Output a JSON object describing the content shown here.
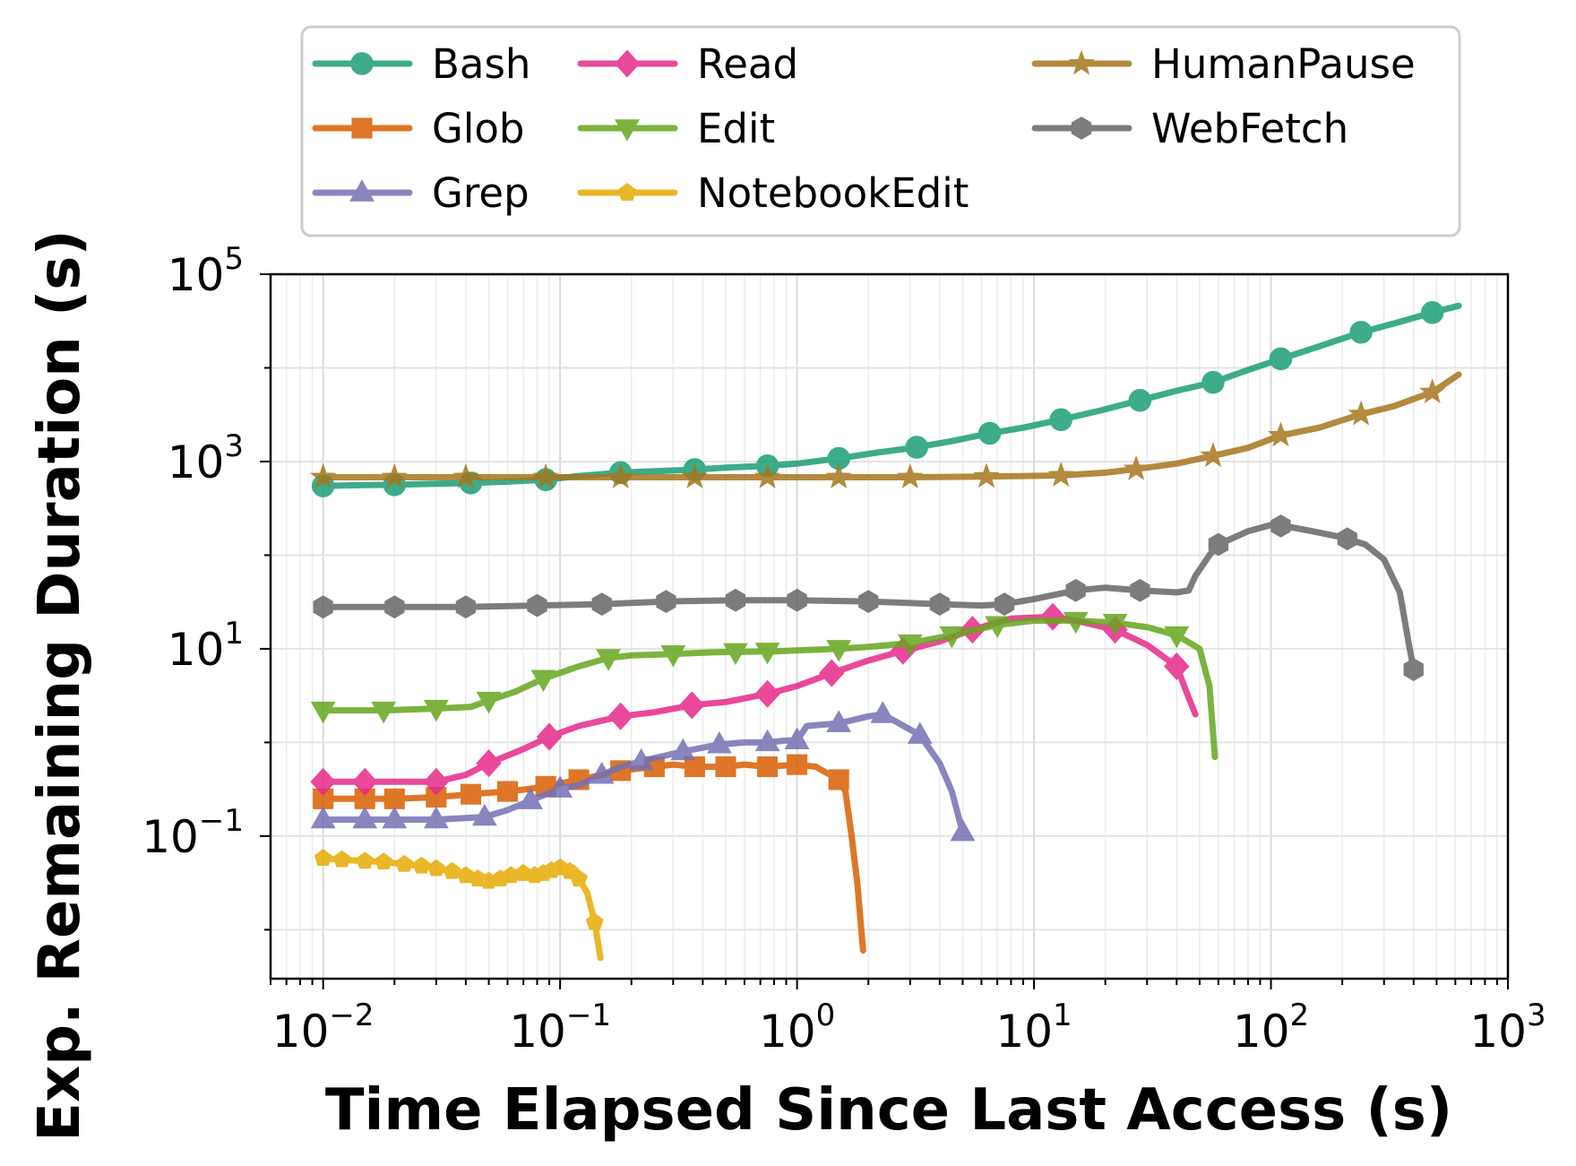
{
  "chart_data": {
    "type": "line",
    "xlabel": "Time Elapsed Since Last Access (s)",
    "ylabel": "Exp. Remaining Duration (s)",
    "xscale": "log",
    "yscale": "log",
    "xlim": [
      0.006,
      1000
    ],
    "ylim": [
      0.003,
      100000
    ],
    "x_ticks": [
      {
        "value": 0.01,
        "base": "10",
        "exp": "−2"
      },
      {
        "value": 0.1,
        "base": "10",
        "exp": "−1"
      },
      {
        "value": 1,
        "base": "10",
        "exp": "0"
      },
      {
        "value": 10,
        "base": "10",
        "exp": "1"
      },
      {
        "value": 100,
        "base": "10",
        "exp": "2"
      },
      {
        "value": 1000,
        "base": "10",
        "exp": "3"
      }
    ],
    "y_ticks": [
      {
        "value": 0.1,
        "base": "10",
        "exp": "−1"
      },
      {
        "value": 10,
        "base": "10",
        "exp": "1"
      },
      {
        "value": 1000,
        "base": "10",
        "exp": "3"
      },
      {
        "value": 100000,
        "base": "10",
        "exp": "5"
      }
    ],
    "grid": true,
    "legend_position": "top, outside plot",
    "series": [
      {
        "name": "Bash",
        "color": "#1b9e77",
        "marker": "circle",
        "points": [
          [
            0.01,
            550
          ],
          [
            0.015,
            560
          ],
          [
            0.02,
            565
          ],
          [
            0.03,
            580
          ],
          [
            0.042,
            590
          ],
          [
            0.06,
            610
          ],
          [
            0.087,
            640
          ],
          [
            0.12,
            700
          ],
          [
            0.18,
            760
          ],
          [
            0.25,
            790
          ],
          [
            0.37,
            820
          ],
          [
            0.5,
            860
          ],
          [
            0.75,
            900
          ],
          [
            1.0,
            950
          ],
          [
            1.5,
            1080
          ],
          [
            2.2,
            1250
          ],
          [
            3.2,
            1420
          ],
          [
            4.5,
            1650
          ],
          [
            6.5,
            2000
          ],
          [
            9,
            2300
          ],
          [
            13,
            2800
          ],
          [
            19,
            3500
          ],
          [
            28,
            4500
          ],
          [
            40,
            5700
          ],
          [
            57,
            7000
          ],
          [
            80,
            9500
          ],
          [
            110,
            12500
          ],
          [
            160,
            17000
          ],
          [
            240,
            24000
          ],
          [
            350,
            31000
          ],
          [
            480,
            39000
          ],
          [
            620,
            46000
          ]
        ],
        "markers_at": [
          0.01,
          0.02,
          0.042,
          0.087,
          0.18,
          0.37,
          0.75,
          1.5,
          3.2,
          6.5,
          13,
          28,
          57,
          110,
          240,
          480
        ]
      },
      {
        "name": "Glob",
        "color": "#d95f02",
        "marker": "square",
        "points": [
          [
            0.01,
            0.25
          ],
          [
            0.015,
            0.25
          ],
          [
            0.02,
            0.25
          ],
          [
            0.03,
            0.26
          ],
          [
            0.042,
            0.28
          ],
          [
            0.05,
            0.29
          ],
          [
            0.06,
            0.3
          ],
          [
            0.075,
            0.32
          ],
          [
            0.087,
            0.34
          ],
          [
            0.12,
            0.4
          ],
          [
            0.15,
            0.45
          ],
          [
            0.18,
            0.5
          ],
          [
            0.25,
            0.55
          ],
          [
            0.3,
            0.58
          ],
          [
            0.37,
            0.55
          ],
          [
            0.5,
            0.55
          ],
          [
            0.6,
            0.58
          ],
          [
            0.75,
            0.55
          ],
          [
            1.0,
            0.58
          ],
          [
            1.2,
            0.55
          ],
          [
            1.5,
            0.4
          ],
          [
            1.6,
            0.3
          ],
          [
            1.7,
            0.1
          ],
          [
            1.8,
            0.03
          ],
          [
            1.9,
            0.006
          ]
        ],
        "markers_at": [
          0.01,
          0.015,
          0.02,
          0.03,
          0.042,
          0.06,
          0.087,
          0.12,
          0.18,
          0.25,
          0.37,
          0.5,
          0.75,
          1.0,
          1.5
        ]
      },
      {
        "name": "Grep",
        "color": "#7570b3",
        "marker": "triangle-up",
        "points": [
          [
            0.01,
            0.15
          ],
          [
            0.015,
            0.15
          ],
          [
            0.02,
            0.15
          ],
          [
            0.03,
            0.15
          ],
          [
            0.048,
            0.16
          ],
          [
            0.06,
            0.19
          ],
          [
            0.075,
            0.24
          ],
          [
            0.1,
            0.32
          ],
          [
            0.12,
            0.35
          ],
          [
            0.18,
            0.55
          ],
          [
            0.25,
            0.68
          ],
          [
            0.33,
            0.8
          ],
          [
            0.47,
            0.95
          ],
          [
            0.6,
            1.0
          ],
          [
            0.75,
            1.0
          ],
          [
            0.9,
            1.05
          ],
          [
            1.0,
            1.05
          ],
          [
            1.1,
            1.5
          ],
          [
            1.5,
            1.6
          ],
          [
            2.0,
            1.9
          ],
          [
            2.3,
            2.0
          ],
          [
            3.3,
            1.2
          ],
          [
            4.0,
            0.6
          ],
          [
            4.5,
            0.3
          ],
          [
            5.0,
            0.11
          ]
        ],
        "markers_at": [
          0.01,
          0.015,
          0.02,
          0.03,
          0.048,
          0.075,
          0.1,
          0.15,
          0.22,
          0.33,
          0.47,
          0.75,
          1.0,
          1.5,
          2.3,
          3.3,
          5.0
        ]
      },
      {
        "name": "Read",
        "color": "#e7298a",
        "marker": "diamond",
        "points": [
          [
            0.01,
            0.38
          ],
          [
            0.015,
            0.38
          ],
          [
            0.02,
            0.38
          ],
          [
            0.03,
            0.38
          ],
          [
            0.04,
            0.45
          ],
          [
            0.05,
            0.6
          ],
          [
            0.07,
            0.85
          ],
          [
            0.09,
            1.15
          ],
          [
            0.12,
            1.5
          ],
          [
            0.18,
            1.9
          ],
          [
            0.25,
            2.1
          ],
          [
            0.36,
            2.5
          ],
          [
            0.5,
            2.7
          ],
          [
            0.75,
            3.3
          ],
          [
            1.0,
            4
          ],
          [
            1.4,
            5.5
          ],
          [
            2.0,
            7.5
          ],
          [
            2.8,
            9.5
          ],
          [
            4.0,
            12
          ],
          [
            5.5,
            16
          ],
          [
            8,
            21
          ],
          [
            12,
            22
          ],
          [
            15,
            20
          ],
          [
            22,
            16
          ],
          [
            30,
            11
          ],
          [
            40,
            6.5
          ],
          [
            45,
            3
          ],
          [
            48,
            2
          ]
        ],
        "markers_at": [
          0.01,
          0.015,
          0.03,
          0.05,
          0.09,
          0.18,
          0.36,
          0.75,
          1.4,
          2.8,
          5.5,
          12,
          22,
          40
        ]
      },
      {
        "name": "Edit",
        "color": "#66a61e",
        "marker": "triangle-down",
        "points": [
          [
            0.01,
            2.2
          ],
          [
            0.018,
            2.2
          ],
          [
            0.03,
            2.3
          ],
          [
            0.042,
            2.4
          ],
          [
            0.05,
            2.8
          ],
          [
            0.065,
            3.5
          ],
          [
            0.085,
            4.8
          ],
          [
            0.12,
            6.5
          ],
          [
            0.16,
            8
          ],
          [
            0.2,
            8.5
          ],
          [
            0.3,
            8.8
          ],
          [
            0.45,
            9.2
          ],
          [
            0.6,
            9.3
          ],
          [
            0.8,
            9.4
          ],
          [
            1.0,
            9.6
          ],
          [
            1.5,
            10
          ],
          [
            2.0,
            10.5
          ],
          [
            3.0,
            11.5
          ],
          [
            4.5,
            14
          ],
          [
            7,
            18
          ],
          [
            10,
            20
          ],
          [
            15,
            20
          ],
          [
            22,
            19
          ],
          [
            30,
            17
          ],
          [
            40,
            14
          ],
          [
            50,
            10
          ],
          [
            55,
            4
          ],
          [
            58,
            0.7
          ]
        ],
        "markers_at": [
          0.01,
          0.018,
          0.03,
          0.05,
          0.085,
          0.16,
          0.3,
          0.55,
          0.75,
          1.5,
          3.0,
          4.5,
          7,
          15,
          22,
          40
        ]
      },
      {
        "name": "NotebookEdit",
        "color": "#e6ab02",
        "marker": "pentagon",
        "points": [
          [
            0.01,
            0.058
          ],
          [
            0.012,
            0.056
          ],
          [
            0.015,
            0.054
          ],
          [
            0.018,
            0.053
          ],
          [
            0.022,
            0.05
          ],
          [
            0.026,
            0.048
          ],
          [
            0.03,
            0.045
          ],
          [
            0.035,
            0.042
          ],
          [
            0.04,
            0.038
          ],
          [
            0.045,
            0.035
          ],
          [
            0.05,
            0.033
          ],
          [
            0.056,
            0.035
          ],
          [
            0.062,
            0.038
          ],
          [
            0.07,
            0.04
          ],
          [
            0.078,
            0.038
          ],
          [
            0.085,
            0.04
          ],
          [
            0.092,
            0.043
          ],
          [
            0.1,
            0.046
          ],
          [
            0.11,
            0.042
          ],
          [
            0.12,
            0.035
          ],
          [
            0.13,
            0.025
          ],
          [
            0.14,
            0.012
          ],
          [
            0.148,
            0.005
          ]
        ],
        "markers_at": [
          0.01,
          0.012,
          0.015,
          0.018,
          0.022,
          0.026,
          0.03,
          0.035,
          0.04,
          0.045,
          0.05,
          0.056,
          0.062,
          0.07,
          0.078,
          0.085,
          0.092,
          0.1,
          0.11,
          0.12,
          0.14
        ]
      },
      {
        "name": "HumanPause",
        "color": "#a6761d",
        "marker": "star",
        "points": [
          [
            0.01,
            680
          ],
          [
            0.02,
            680
          ],
          [
            0.04,
            680
          ],
          [
            0.087,
            680
          ],
          [
            0.18,
            680
          ],
          [
            0.37,
            680
          ],
          [
            0.75,
            680
          ],
          [
            1.5,
            680
          ],
          [
            3.0,
            680
          ],
          [
            6.3,
            690
          ],
          [
            13,
            710
          ],
          [
            20,
            760
          ],
          [
            27,
            830
          ],
          [
            40,
            950
          ],
          [
            57,
            1150
          ],
          [
            80,
            1400
          ],
          [
            110,
            1900
          ],
          [
            160,
            2300
          ],
          [
            240,
            3200
          ],
          [
            330,
            3900
          ],
          [
            480,
            5500
          ],
          [
            620,
            8500
          ]
        ],
        "markers_at": [
          0.01,
          0.02,
          0.04,
          0.087,
          0.18,
          0.37,
          0.75,
          1.5,
          3.0,
          6.3,
          13,
          27,
          57,
          110,
          240,
          480
        ]
      },
      {
        "name": "WebFetch",
        "color": "#666666",
        "marker": "hexagon",
        "points": [
          [
            0.01,
            28
          ],
          [
            0.02,
            28
          ],
          [
            0.04,
            28
          ],
          [
            0.08,
            29
          ],
          [
            0.15,
            30
          ],
          [
            0.28,
            32
          ],
          [
            0.55,
            33
          ],
          [
            1.0,
            33
          ],
          [
            2.0,
            32
          ],
          [
            4.0,
            30
          ],
          [
            6,
            29
          ],
          [
            7.5,
            30
          ],
          [
            10,
            34
          ],
          [
            15,
            42
          ],
          [
            20,
            45
          ],
          [
            28,
            42
          ],
          [
            40,
            40
          ],
          [
            45,
            42
          ],
          [
            48,
            60
          ],
          [
            55,
            100
          ],
          [
            60,
            130
          ],
          [
            80,
            180
          ],
          [
            100,
            210
          ],
          [
            120,
            200
          ],
          [
            150,
            180
          ],
          [
            200,
            155
          ],
          [
            250,
            130
          ],
          [
            300,
            90
          ],
          [
            350,
            40
          ],
          [
            380,
            12
          ],
          [
            400,
            6
          ]
        ],
        "markers_at": [
          0.01,
          0.02,
          0.04,
          0.08,
          0.15,
          0.28,
          0.55,
          1.0,
          2.0,
          4.0,
          7.5,
          15,
          28,
          60,
          110,
          210,
          400
        ]
      }
    ]
  }
}
